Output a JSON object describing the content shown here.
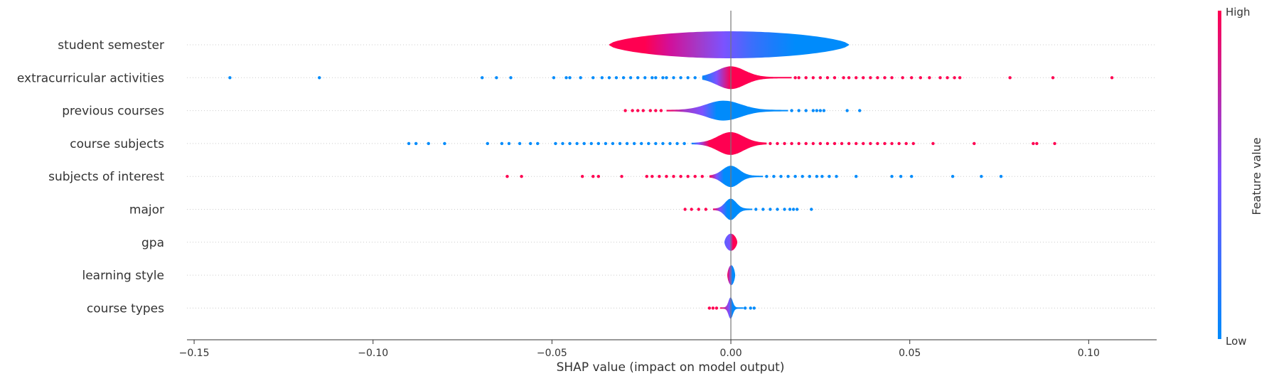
{
  "chart_data": {
    "type": "violin",
    "title": "",
    "xlabel": "SHAP value (impact on model output)",
    "ylabel": "",
    "xlim": [
      -0.152,
      0.119
    ],
    "xticks": [
      -0.15,
      -0.1,
      -0.05,
      0.0,
      0.05,
      0.1
    ],
    "xtick_labels": [
      "−0.15",
      "−0.10",
      "−0.05",
      "0.00",
      "0.05",
      "0.10"
    ],
    "grid": false,
    "colorbar": {
      "label": "Feature value",
      "high_label": "High",
      "low_label": "Low",
      "high_color": "#ff0051",
      "mid_color": "#7c52ff",
      "low_color": "#008bfb"
    },
    "features": [
      {
        "name": "student semester",
        "body_range": [
          -0.034,
          0.033
        ],
        "body_gradient": [
          [
            -0.034,
            "#ff0051"
          ],
          [
            -0.024,
            "#ff0051"
          ],
          [
            -0.017,
            "#d1109a"
          ],
          [
            -0.009,
            "#a33ac8"
          ],
          [
            -0.002,
            "#7c52ff"
          ],
          [
            0.006,
            "#3a6ffb"
          ],
          [
            0.012,
            "#1a7dfb"
          ],
          [
            0.018,
            "#008bfb"
          ],
          [
            0.033,
            "#008bfb"
          ]
        ],
        "dots_low": [],
        "dots_high": []
      },
      {
        "name": "extracurricular activities",
        "body_range": [
          -0.008,
          0.017
        ],
        "body_gradient": [
          [
            -0.009,
            "#008bfb"
          ],
          [
            -0.004,
            "#7c52ff"
          ],
          [
            0.0,
            "#ff0051"
          ],
          [
            0.017,
            "#ff0051"
          ]
        ],
        "dots_low": [
          -0.14,
          -0.115,
          -0.0695,
          -0.0655,
          -0.0615,
          -0.0495,
          -0.046,
          -0.045,
          -0.042,
          -0.0385,
          -0.036,
          -0.034,
          -0.032,
          -0.03,
          -0.028,
          -0.026,
          -0.024,
          -0.022,
          -0.021,
          -0.019,
          -0.018,
          -0.016,
          -0.014,
          -0.012,
          -0.01
        ],
        "dots_high": [
          0.018,
          0.019,
          0.021,
          0.023,
          0.025,
          0.027,
          0.029,
          0.0315,
          0.033,
          0.035,
          0.037,
          0.039,
          0.041,
          0.043,
          0.045,
          0.048,
          0.0505,
          0.053,
          0.0555,
          0.0585,
          0.0605,
          0.0625,
          0.064,
          0.078,
          0.09,
          0.1065
        ]
      },
      {
        "name": "previous courses",
        "body_range": [
          -0.018,
          0.016
        ],
        "body_gradient": [
          [
            -0.018,
            "#ff0051"
          ],
          [
            -0.013,
            "#a33ac8"
          ],
          [
            -0.008,
            "#7c52ff"
          ],
          [
            -0.004,
            "#008bfb"
          ],
          [
            0.016,
            "#008bfb"
          ]
        ],
        "dots_low": [
          0.017,
          0.019,
          0.021,
          0.023,
          0.024,
          0.025,
          0.026,
          0.0325,
          0.036
        ],
        "dots_high": [
          -0.0295,
          -0.0275,
          -0.026,
          -0.0245,
          -0.0225,
          -0.021,
          -0.0195
        ]
      },
      {
        "name": "course subjects",
        "body_range": [
          -0.011,
          0.01
        ],
        "body_gradient": [
          [
            -0.012,
            "#008bfb"
          ],
          [
            -0.009,
            "#7c52ff"
          ],
          [
            -0.006,
            "#ff0051"
          ],
          [
            0.01,
            "#ff0051"
          ]
        ],
        "dots_low": [
          -0.09,
          -0.088,
          -0.0845,
          -0.08,
          -0.068,
          -0.064,
          -0.062,
          -0.059,
          -0.056,
          -0.054,
          -0.049,
          -0.047,
          -0.045,
          -0.043,
          -0.041,
          -0.039,
          -0.037,
          -0.035,
          -0.033,
          -0.031,
          -0.029,
          -0.027,
          -0.025,
          -0.023,
          -0.021,
          -0.019,
          -0.017,
          -0.015,
          -0.013
        ],
        "dots_high": [
          0.011,
          0.013,
          0.015,
          0.017,
          0.019,
          0.021,
          0.023,
          0.025,
          0.027,
          0.029,
          0.031,
          0.033,
          0.035,
          0.037,
          0.039,
          0.041,
          0.043,
          0.045,
          0.047,
          0.049,
          0.051,
          0.0565,
          0.068,
          0.0845,
          0.0855,
          0.0905
        ]
      },
      {
        "name": "subjects of interest",
        "body_range": [
          -0.006,
          0.009
        ],
        "body_gradient": [
          [
            -0.007,
            "#ff0051"
          ],
          [
            -0.004,
            "#7c52ff"
          ],
          [
            -0.002,
            "#008bfb"
          ],
          [
            0.009,
            "#008bfb"
          ]
        ],
        "dots_low": [
          0.01,
          0.012,
          0.014,
          0.016,
          0.018,
          0.02,
          0.022,
          0.024,
          0.0255,
          0.0275,
          0.0295,
          0.035,
          0.045,
          0.0475,
          0.0505,
          0.062,
          0.07,
          0.0755
        ],
        "dots_high": [
          -0.0625,
          -0.0585,
          -0.0415,
          -0.0385,
          -0.037,
          -0.0305,
          -0.0235,
          -0.022,
          -0.02,
          -0.018,
          -0.016,
          -0.014,
          -0.012,
          -0.01,
          -0.008
        ]
      },
      {
        "name": "major",
        "body_range": [
          -0.005,
          0.006
        ],
        "body_gradient": [
          [
            -0.006,
            "#ff0051"
          ],
          [
            -0.003,
            "#7c52ff"
          ],
          [
            -0.001,
            "#008bfb"
          ],
          [
            0.006,
            "#008bfb"
          ]
        ],
        "dots_low": [
          0.007,
          0.009,
          0.011,
          0.013,
          0.015,
          0.0165,
          0.0175,
          0.0185,
          0.0225
        ],
        "dots_high": [
          -0.0128,
          -0.011,
          -0.009,
          -0.007
        ]
      },
      {
        "name": "gpa",
        "body_range": [
          -0.0018,
          0.0018
        ],
        "body_gradient": [
          [
            -0.0018,
            "#5a62ff"
          ],
          [
            -0.0002,
            "#7c52ff"
          ],
          [
            0.0006,
            "#ff0051"
          ],
          [
            0.0018,
            "#ff0051"
          ]
        ],
        "dots_low": [],
        "dots_high": []
      },
      {
        "name": "learning style",
        "body_range": [
          -0.001,
          0.0012
        ],
        "body_gradient": [
          [
            -0.001,
            "#ff0051"
          ],
          [
            0.0,
            "#7c52ff"
          ],
          [
            0.0004,
            "#008bfb"
          ],
          [
            0.0012,
            "#008bfb"
          ]
        ],
        "dots_low": [],
        "dots_high": []
      },
      {
        "name": "course types",
        "body_range": [
          -0.003,
          0.0035
        ],
        "body_gradient": [
          [
            -0.003,
            "#ff0051"
          ],
          [
            -0.0005,
            "#7c52ff"
          ],
          [
            0.0005,
            "#008bfb"
          ],
          [
            0.0035,
            "#008bfb"
          ]
        ],
        "dots_low": [
          0.004,
          0.0055,
          0.0065
        ],
        "dots_high": [
          -0.006,
          -0.005,
          -0.004
        ]
      }
    ]
  }
}
